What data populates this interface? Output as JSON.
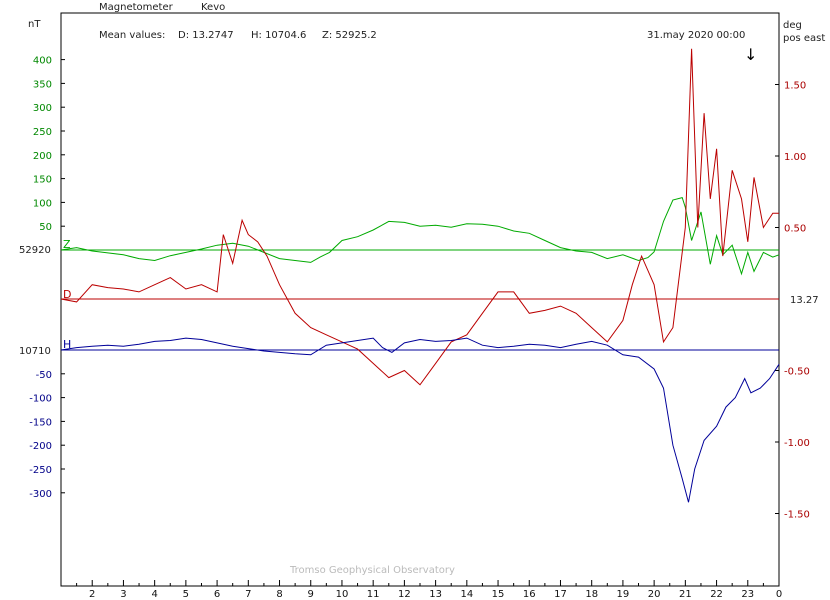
{
  "header": {
    "title": "Magnetometer",
    "station": "Kevo",
    "mean_values_label": "Mean values:",
    "mean_d": "D: 13.2747",
    "mean_h": "H: 10704.6",
    "mean_z": "Z: 52925.2",
    "timestamp": "31.may 2020 00:00",
    "arrow_glyph": "↓"
  },
  "left_axis": {
    "unit": "nT"
  },
  "right_axis": {
    "unit_line1": "deg",
    "unit_line2": "pos east"
  },
  "baseline_labels": {
    "z": "52920",
    "h": "10710",
    "d": "13.27"
  },
  "trace_letters": {
    "z": "Z",
    "d": "D",
    "h": "H"
  },
  "credit": "Tromso Geophysical Observatory",
  "colors": {
    "z": "#00aa00",
    "d": "#bb0000",
    "h": "#000099",
    "frame": "#000000"
  },
  "chart_data": {
    "type": "line",
    "x_ticks": [
      "2",
      "3",
      "4",
      "5",
      "6",
      "7",
      "8",
      "9",
      "10",
      "11",
      "12",
      "13",
      "14",
      "15",
      "16",
      "17",
      "18",
      "19",
      "20",
      "21",
      "22",
      "23",
      "0"
    ],
    "xlim": [
      1,
      24
    ],
    "left_ticks_positive": [
      "400",
      "350",
      "300",
      "250",
      "200",
      "150",
      "100",
      "50"
    ],
    "left_ticks_negative": [
      "-50",
      "-100",
      "-150",
      "-200",
      "-250",
      "-300"
    ],
    "right_ticks": [
      "1.50",
      "1.00",
      "0.50",
      "-0.50",
      "-1.00",
      "-1.50"
    ],
    "baselines": {
      "Z": 52920,
      "D": 13.27,
      "H": 10710
    },
    "series": [
      {
        "name": "Z",
        "axis": "nT",
        "x": [
          1,
          1.5,
          2,
          2.5,
          3,
          3.5,
          4,
          4.5,
          5,
          5.5,
          6,
          6.5,
          7,
          7.5,
          8,
          8.5,
          9,
          9.3,
          9.6,
          10,
          10.5,
          11,
          11.5,
          12,
          12.5,
          13,
          13.5,
          14,
          14.5,
          15,
          15.5,
          16,
          16.5,
          17,
          17.5,
          18,
          18.5,
          19,
          19.5,
          19.8,
          20,
          20.3,
          20.6,
          20.9,
          21,
          21.2,
          21.5,
          21.8,
          22,
          22.2,
          22.5,
          22.8,
          23,
          23.2,
          23.5,
          23.8,
          24
        ],
        "values": [
          0,
          5,
          -2,
          -6,
          -10,
          -18,
          -22,
          -12,
          -5,
          2,
          10,
          14,
          8,
          -5,
          -18,
          -22,
          -26,
          -15,
          -5,
          20,
          28,
          42,
          60,
          58,
          50,
          52,
          48,
          55,
          54,
          50,
          40,
          35,
          20,
          5,
          -2,
          -5,
          -18,
          -10,
          -22,
          -16,
          -4,
          60,
          105,
          110,
          90,
          20,
          80,
          -30,
          30,
          -10,
          10,
          -50,
          -5,
          -45,
          -5,
          -15,
          -10
        ]
      },
      {
        "name": "D",
        "axis": "deg",
        "x": [
          1,
          1.5,
          2,
          2.5,
          3,
          3.5,
          4,
          4.5,
          5,
          5.5,
          6,
          6.2,
          6.5,
          6.8,
          7,
          7.3,
          7.6,
          8,
          8.5,
          9,
          9.5,
          10,
          10.5,
          11,
          11.5,
          12,
          12.5,
          13,
          13.5,
          14,
          14.5,
          15,
          15.5,
          16,
          16.5,
          17,
          17.5,
          18,
          18.5,
          19,
          19.3,
          19.6,
          20,
          20.3,
          20.6,
          21,
          21.2,
          21.4,
          21.6,
          21.8,
          22,
          22.2,
          22.5,
          22.8,
          23,
          23.2,
          23.5,
          23.8,
          24
        ],
        "values": [
          0,
          -0.02,
          0.1,
          0.08,
          0.07,
          0.05,
          0.1,
          0.15,
          0.07,
          0.1,
          0.05,
          0.45,
          0.25,
          0.55,
          0.45,
          0.4,
          0.3,
          0.1,
          -0.1,
          -0.2,
          -0.25,
          -0.3,
          -0.35,
          -0.45,
          -0.55,
          -0.5,
          -0.6,
          -0.45,
          -0.3,
          -0.25,
          -0.1,
          0.05,
          0.05,
          -0.1,
          -0.08,
          -0.05,
          -0.1,
          -0.2,
          -0.3,
          -0.15,
          0.1,
          0.3,
          0.1,
          -0.3,
          -0.2,
          0.5,
          1.75,
          0.5,
          1.3,
          0.7,
          1.05,
          0.3,
          0.9,
          0.7,
          0.4,
          0.85,
          0.5,
          0.6,
          0.6
        ]
      },
      {
        "name": "H",
        "axis": "nT",
        "x": [
          1,
          1.5,
          2,
          2.5,
          3,
          3.5,
          4,
          4.5,
          5,
          5.5,
          6,
          6.5,
          7,
          7.5,
          8,
          8.5,
          9,
          9.5,
          10,
          10.5,
          11,
          11.3,
          11.6,
          12,
          12.5,
          13,
          13.5,
          14,
          14.5,
          15,
          15.5,
          16,
          16.5,
          17,
          17.5,
          18,
          18.5,
          19,
          19.5,
          20,
          20.3,
          20.6,
          20.9,
          21.1,
          21.3,
          21.6,
          22,
          22.3,
          22.6,
          22.9,
          23.1,
          23.4,
          23.7,
          24
        ],
        "values": [
          0,
          5,
          8,
          10,
          8,
          12,
          18,
          20,
          25,
          22,
          15,
          8,
          3,
          -2,
          -5,
          -8,
          -10,
          10,
          15,
          20,
          25,
          5,
          -5,
          15,
          22,
          18,
          20,
          25,
          10,
          5,
          8,
          12,
          10,
          5,
          12,
          18,
          10,
          -10,
          -15,
          -40,
          -80,
          -200,
          -270,
          -320,
          -250,
          -190,
          -160,
          -120,
          -100,
          -60,
          -90,
          -80,
          -60,
          -30
        ]
      }
    ]
  }
}
